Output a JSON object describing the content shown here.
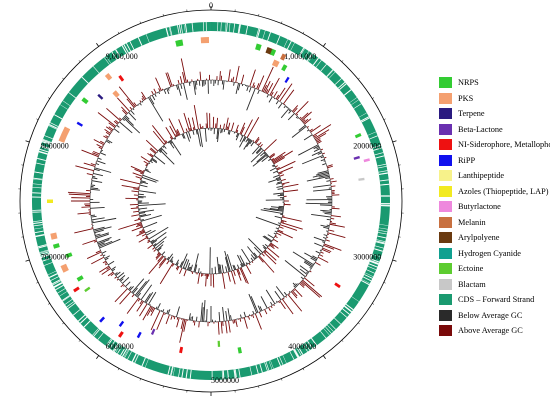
{
  "chart_data": {
    "type": "circular-genome-map",
    "scale_ticks": [
      "0",
      "1,000,000",
      "2000000",
      "3000000",
      "4000000",
      "5000000",
      "6000000",
      "7000000",
      "8000000",
      "9,000,000"
    ],
    "genome_length": 10000000,
    "legend": [
      {
        "label": "NRPS",
        "color": "#33cc33"
      },
      {
        "label": "PKS",
        "color": "#f4a070"
      },
      {
        "label": "Terpene",
        "color": "#2a1a80"
      },
      {
        "label": "Beta-Lactone",
        "color": "#6a30b0"
      },
      {
        "label": "NI-Siderophore, Metallophore",
        "color": "#ee1111"
      },
      {
        "label": "RiPP",
        "color": "#1010ee"
      },
      {
        "label": "Lanthipeptide",
        "color": "#f7f28a"
      },
      {
        "label": "Azoles (Thiopeptide, LAP)",
        "color": "#f2ea20"
      },
      {
        "label": "Butyrlactone",
        "color": "#ee88dd"
      },
      {
        "label": "Melanin",
        "color": "#c87040"
      },
      {
        "label": "Arylpolyene",
        "color": "#6a3a10"
      },
      {
        "label": "Hydrogen Cyanide",
        "color": "#10a090"
      },
      {
        "label": "Ectoine",
        "color": "#5dcc30"
      },
      {
        "label": "Blactam",
        "color": "#c8c8c8"
      },
      {
        "label": "CDS – Forward Strand",
        "color": "#1a9a70"
      },
      {
        "label": "Below Average GC",
        "color": "#2a2a2a"
      },
      {
        "label": "Above Average GC",
        "color": "#7a0a0a"
      }
    ],
    "clusters": [
      {
        "type": "NRPS",
        "pos": 9650000,
        "len": 70000,
        "lane": 0
      },
      {
        "type": "PKS",
        "pos": 9900000,
        "len": 80000,
        "lane": 0
      },
      {
        "type": "NRPS",
        "pos": 450000,
        "len": 50000,
        "lane": 0
      },
      {
        "type": "Arylpolyene",
        "pos": 560000,
        "len": 60000,
        "lane": 0
      },
      {
        "type": "NRPS",
        "pos": 610000,
        "len": 40000,
        "lane": 0
      },
      {
        "type": "PKS",
        "pos": 670000,
        "len": 60000,
        "lane": 1
      },
      {
        "type": "Melanin",
        "pos": 720000,
        "len": 40000,
        "lane": 0
      },
      {
        "type": "NRPS",
        "pos": 780000,
        "len": 40000,
        "lane": 1
      },
      {
        "type": "RiPP",
        "pos": 880000,
        "len": 25000,
        "lane": 2
      },
      {
        "type": "NRPS",
        "pos": 1820000,
        "len": 30000,
        "lane": 0
      },
      {
        "type": "Beta-Lactone",
        "pos": 2030000,
        "len": 25000,
        "lane": 1
      },
      {
        "type": "Butyrlactone",
        "pos": 2080000,
        "len": 25000,
        "lane": 0
      },
      {
        "type": "Blactam",
        "pos": 2260000,
        "len": 25000,
        "lane": 1
      },
      {
        "type": "NI-Siderophore, Metallophore",
        "pos": 3420000,
        "len": 30000,
        "lane": 1
      },
      {
        "type": "NRPS",
        "pos": 4680000,
        "len": 35000,
        "lane": 1
      },
      {
        "type": "Ectoine",
        "pos": 4900000,
        "len": 25000,
        "lane": 2
      },
      {
        "type": "NI-Siderophore, Metallophore",
        "pos": 5300000,
        "len": 30000,
        "lane": 1
      },
      {
        "type": "Beta-Lactone",
        "pos": 5650000,
        "len": 25000,
        "lane": 2
      },
      {
        "type": "RiPP",
        "pos": 5770000,
        "len": 25000,
        "lane": 1
      },
      {
        "type": "NI-Siderophore, Metallophore",
        "pos": 5930000,
        "len": 30000,
        "lane": 0
      },
      {
        "type": "RiPP",
        "pos": 5990000,
        "len": 25000,
        "lane": 1
      },
      {
        "type": "RiPP",
        "pos": 6170000,
        "len": 25000,
        "lane": 0
      },
      {
        "type": "Ectoine",
        "pos": 6500000,
        "len": 25000,
        "lane": 1
      },
      {
        "type": "NI-Siderophore, Metallophore",
        "pos": 6560000,
        "len": 30000,
        "lane": 0
      },
      {
        "type": "NRPS",
        "pos": 6630000,
        "len": 40000,
        "lane": 1
      },
      {
        "type": "PKS",
        "pos": 6780000,
        "len": 70000,
        "lane": 0
      },
      {
        "type": "NRPS",
        "pos": 6900000,
        "len": 40000,
        "lane": 1
      },
      {
        "type": "NRPS",
        "pos": 7030000,
        "len": 40000,
        "lane": 0
      },
      {
        "type": "PKS",
        "pos": 7120000,
        "len": 60000,
        "lane": 0
      },
      {
        "type": "Azoles (Thiopeptide, LAP)",
        "pos": 7480000,
        "len": 35000,
        "lane": 0
      },
      {
        "type": "PKS",
        "pos": 8100000,
        "len": 150000,
        "lane": 0
      },
      {
        "type": "RiPP",
        "pos": 8330000,
        "len": 25000,
        "lane": 1
      },
      {
        "type": "NRPS",
        "pos": 8550000,
        "len": 40000,
        "lane": 0
      },
      {
        "type": "Terpene",
        "pos": 8690000,
        "len": 25000,
        "lane": 1
      },
      {
        "type": "PKS",
        "pos": 8820000,
        "len": 50000,
        "lane": 2
      },
      {
        "type": "PKS",
        "pos": 8880000,
        "len": 45000,
        "lane": 0
      },
      {
        "type": "NI-Siderophore, Metallophore",
        "pos": 8980000,
        "len": 30000,
        "lane": 1
      }
    ]
  }
}
